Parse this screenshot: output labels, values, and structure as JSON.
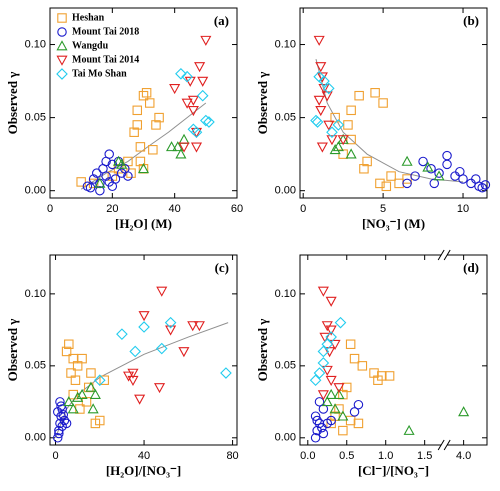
{
  "chart_data": [
    {
      "type": "scatter",
      "label": "(a)",
      "xlabel": "[H₂O] (M)",
      "ylabel": "Observed γ",
      "xlim": [
        0,
        60
      ],
      "xticks": [
        0,
        20,
        40,
        60
      ],
      "ylim": [
        -0.005,
        0.125
      ],
      "yticks": [
        {
          "value": 0,
          "label": "0.00"
        },
        {
          "value": 0.05,
          "label": "0.05"
        },
        {
          "value": 0.1,
          "label": "0.10"
        }
      ],
      "legend": "upper left",
      "series": [
        {
          "name": "Heshan",
          "color": "#f0a030",
          "marker": "square",
          "x": [
            10,
            14,
            20,
            22,
            25,
            27,
            28,
            28,
            30,
            31,
            32,
            29,
            30,
            34,
            33,
            26,
            35,
            29
          ],
          "values": [
            0.006,
            0.005,
            0.01,
            0.015,
            0.02,
            0.04,
            0.045,
            0.055,
            0.065,
            0.067,
            0.06,
            0.03,
            0.015,
            0.045,
            0.028,
            0.012,
            0.05,
            0.02
          ]
        },
        {
          "name": "Mount Tai 2018",
          "color": "#1a1acc",
          "marker": "circle",
          "x": [
            12,
            14,
            15,
            16,
            17,
            18,
            18,
            19,
            20,
            21,
            22,
            23,
            24,
            16,
            20,
            25,
            13,
            19
          ],
          "values": [
            0.003,
            0.008,
            0.012,
            0.005,
            0.015,
            0.02,
            0.01,
            0.025,
            0.018,
            0.008,
            0.02,
            0.012,
            0.015,
            0.0,
            0.003,
            0.01,
            0.002,
            0.006
          ]
        },
        {
          "name": "Wangdu",
          "color": "#2a9a2a",
          "marker": "triangle-up",
          "x": [
            16,
            22,
            23,
            39,
            41,
            43,
            42,
            30
          ],
          "values": [
            0.005,
            0.02,
            0.018,
            0.03,
            0.03,
            0.035,
            0.025,
            0.015
          ]
        },
        {
          "name": "Mount Tai 2014",
          "color": "#e02020",
          "marker": "triangle-down",
          "x": [
            40,
            44,
            45,
            46,
            47,
            48,
            49,
            50,
            47,
            46,
            43
          ],
          "values": [
            0.07,
            0.06,
            0.075,
            0.055,
            0.04,
            0.085,
            0.075,
            0.103,
            0.03,
            0.062,
            0.03
          ]
        },
        {
          "name": "Tai Mo Shan",
          "color": "#22ccee",
          "marker": "diamond",
          "x": [
            42,
            44,
            47,
            49,
            50,
            51,
            46
          ],
          "values": [
            0.08,
            0.078,
            0.04,
            0.065,
            0.048,
            0.047,
            0.042
          ]
        }
      ],
      "fit": {
        "color": "#909090",
        "x": [
          10,
          18,
          25,
          32,
          38,
          44,
          50
        ],
        "values": [
          0.001,
          0.012,
          0.02,
          0.031,
          0.04,
          0.05,
          0.06
        ]
      }
    },
    {
      "type": "scatter",
      "label": "(b)",
      "xlabel": "[NO₃⁻] (M)",
      "ylabel": "Observed γ",
      "xlim": [
        -0.2,
        11.5
      ],
      "xticks": [
        0,
        5,
        10
      ],
      "ylim": [
        -0.005,
        0.125
      ],
      "yticks": [
        {
          "value": 0,
          "label": "0.00"
        },
        {
          "value": 0.05,
          "label": "0.05"
        },
        {
          "value": 0.1,
          "label": "0.10"
        }
      ],
      "series": [
        {
          "color": "#f0a030",
          "marker": "square",
          "x": [
            3.5,
            4.5,
            5,
            3,
            2.8,
            2,
            3,
            2.5,
            4,
            3.8,
            5.5,
            6,
            4.8,
            6.5,
            5.2
          ],
          "values": [
            0.065,
            0.067,
            0.06,
            0.055,
            0.045,
            0.05,
            0.035,
            0.025,
            0.02,
            0.015,
            0.01,
            0.005,
            0.005,
            0.008,
            0.003
          ]
        },
        {
          "color": "#1a1acc",
          "marker": "circle",
          "x": [
            6.5,
            7,
            7.5,
            8,
            8.5,
            9,
            9,
            9.5,
            10,
            10.5,
            11,
            11.2,
            11.4,
            8.2,
            10.8,
            9.8
          ],
          "values": [
            0.005,
            0.01,
            0.02,
            0.015,
            0.012,
            0.024,
            0.018,
            0.01,
            0.008,
            0.005,
            0.003,
            0.002,
            0.004,
            0.005,
            0.008,
            0.013
          ]
        },
        {
          "color": "#2a9a2a",
          "marker": "triangle-up",
          "x": [
            2.2,
            2.5,
            2,
            6.5,
            7.8,
            3,
            8.5
          ],
          "values": [
            0.03,
            0.035,
            0.028,
            0.02,
            0.016,
            0.025,
            0.01
          ]
        },
        {
          "color": "#e02020",
          "marker": "triangle-down",
          "x": [
            1,
            1.1,
            1.2,
            1.3,
            1.5,
            1.6,
            1.1,
            1.8,
            1.2,
            2.5,
            1
          ],
          "values": [
            0.103,
            0.085,
            0.078,
            0.07,
            0.065,
            0.045,
            0.055,
            0.035,
            0.03,
            0.035,
            0.062
          ]
        },
        {
          "color": "#22ccee",
          "marker": "diamond",
          "x": [
            0.8,
            1,
            1.3,
            1.6,
            1.8,
            0.9,
            2.2
          ],
          "values": [
            0.048,
            0.078,
            0.075,
            0.07,
            0.04,
            0.047,
            0.045
          ]
        }
      ],
      "fit": {
        "color": "#909090",
        "x": [
          0.8,
          1.5,
          2.5,
          4,
          6,
          8,
          10
        ],
        "values": [
          0.09,
          0.06,
          0.04,
          0.025,
          0.013,
          0.008,
          0.006
        ]
      }
    },
    {
      "type": "scatter",
      "label": "(c)",
      "xlabel": "[H₂O]/[NO₃⁻]",
      "ylabel": "Observed γ",
      "xlim": [
        -2.5,
        82
      ],
      "xticks": [
        0,
        40,
        80
      ],
      "ylim": [
        -0.005,
        0.127
      ],
      "yticks": [
        {
          "value": 0,
          "label": "0.00"
        },
        {
          "value": 0.05,
          "label": "0.05"
        },
        {
          "value": 0.1,
          "label": "0.10"
        }
      ],
      "series": [
        {
          "color": "#f0a030",
          "marker": "square",
          "x": [
            5,
            6,
            8,
            10,
            12,
            7,
            9,
            15,
            14,
            11,
            18,
            20,
            8,
            16,
            22
          ],
          "values": [
            0.06,
            0.065,
            0.055,
            0.05,
            0.055,
            0.045,
            0.04,
            0.035,
            0.025,
            0.02,
            0.01,
            0.012,
            0.03,
            0.045,
            0.04
          ]
        },
        {
          "color": "#1a1acc",
          "marker": "circle",
          "x": [
            1,
            1.5,
            2,
            2.5,
            3,
            2,
            1,
            3,
            4,
            1.5,
            2.5,
            3.5,
            5
          ],
          "values": [
            0.0,
            0.005,
            0.01,
            0.015,
            0.02,
            0.025,
            0.018,
            0.008,
            0.012,
            0.003,
            0.022,
            0.016,
            0.01
          ]
        },
        {
          "color": "#2a9a2a",
          "marker": "triangle-up",
          "x": [
            12,
            16,
            18,
            10,
            6,
            8,
            17
          ],
          "values": [
            0.03,
            0.035,
            0.03,
            0.028,
            0.025,
            0.02,
            0.02
          ]
        },
        {
          "color": "#e02020",
          "marker": "triangle-down",
          "x": [
            33,
            35,
            40,
            48,
            52,
            58,
            62,
            65,
            38,
            47,
            35
          ],
          "values": [
            0.043,
            0.04,
            0.085,
            0.102,
            0.075,
            0.06,
            0.078,
            0.078,
            0.027,
            0.035,
            0.045
          ]
        },
        {
          "color": "#22ccee",
          "marker": "diamond",
          "x": [
            30,
            36,
            40,
            48,
            52,
            77,
            20
          ],
          "values": [
            0.072,
            0.06,
            0.077,
            0.062,
            0.08,
            0.045,
            0.04
          ]
        }
      ],
      "fit": {
        "color": "#909090",
        "x": [
          0,
          5,
          10,
          20,
          40,
          60,
          78
        ],
        "values": [
          0.0,
          0.02,
          0.03,
          0.042,
          0.058,
          0.07,
          0.08
        ]
      }
    },
    {
      "type": "scatter",
      "label": "(d)",
      "xlabel": "[Cl⁻]/[NO₃⁻]",
      "ylabel": "Observed γ",
      "xlim": [
        -0.1,
        4.3
      ],
      "xbreak": [
        1.75,
        3.75
      ],
      "xticks": [
        {
          "value": 0,
          "label": "0.0"
        },
        {
          "value": 0.5,
          "label": "0.5"
        },
        {
          "value": 1,
          "label": "1.0"
        },
        {
          "value": 1.5,
          "label": "1.5"
        },
        {
          "value": 4,
          "label": "4.0"
        }
      ],
      "ylim": [
        -0.005,
        0.127
      ],
      "yticks": [
        {
          "value": 0,
          "label": "0.00"
        },
        {
          "value": 0.05,
          "label": "0.05"
        },
        {
          "value": 0.1,
          "label": "0.10"
        }
      ],
      "series": [
        {
          "color": "#f0a030",
          "marker": "square",
          "x": [
            0.55,
            0.6,
            0.7,
            0.85,
            0.9,
            0.95,
            1.05,
            0.45,
            0.5,
            0.4,
            0.35,
            0.3,
            0.55,
            0.65,
            0.45
          ],
          "values": [
            0.065,
            0.055,
            0.05,
            0.045,
            0.04,
            0.043,
            0.043,
            0.03,
            0.035,
            0.02,
            0.015,
            0.01,
            0.012,
            0.01,
            0.005
          ]
        },
        {
          "color": "#1a1acc",
          "marker": "circle",
          "x": [
            0.1,
            0.12,
            0.15,
            0.1,
            0.2,
            0.25,
            0.15,
            0.2,
            0.3,
            0.6,
            0.65,
            0.12,
            0.18
          ],
          "values": [
            0.0,
            0.005,
            0.01,
            0.015,
            0.02,
            0.01,
            0.025,
            0.003,
            0.012,
            0.018,
            0.023,
            0.012,
            0.007
          ]
        },
        {
          "color": "#2a9a2a",
          "marker": "triangle-up",
          "x": [
            0.3,
            0.25,
            0.35,
            0.45,
            1.3,
            4.0,
            0.4
          ],
          "values": [
            0.03,
            0.025,
            0.02,
            0.015,
            0.005,
            0.018,
            0.03
          ]
        },
        {
          "color": "#e02020",
          "marker": "triangle-down",
          "x": [
            0.2,
            0.3,
            0.25,
            0.3,
            0.22,
            0.35,
            0.28,
            0.3,
            0.4,
            0.25,
            0.2
          ],
          "values": [
            0.102,
            0.095,
            0.078,
            0.075,
            0.07,
            0.065,
            0.06,
            0.04,
            0.035,
            0.047,
            0.03
          ]
        },
        {
          "color": "#22ccee",
          "marker": "diamond",
          "x": [
            0.1,
            0.15,
            0.2,
            0.25,
            0.3,
            0.42,
            0.2
          ],
          "values": [
            0.04,
            0.045,
            0.06,
            0.065,
            0.07,
            0.08,
            0.052
          ]
        }
      ]
    }
  ]
}
